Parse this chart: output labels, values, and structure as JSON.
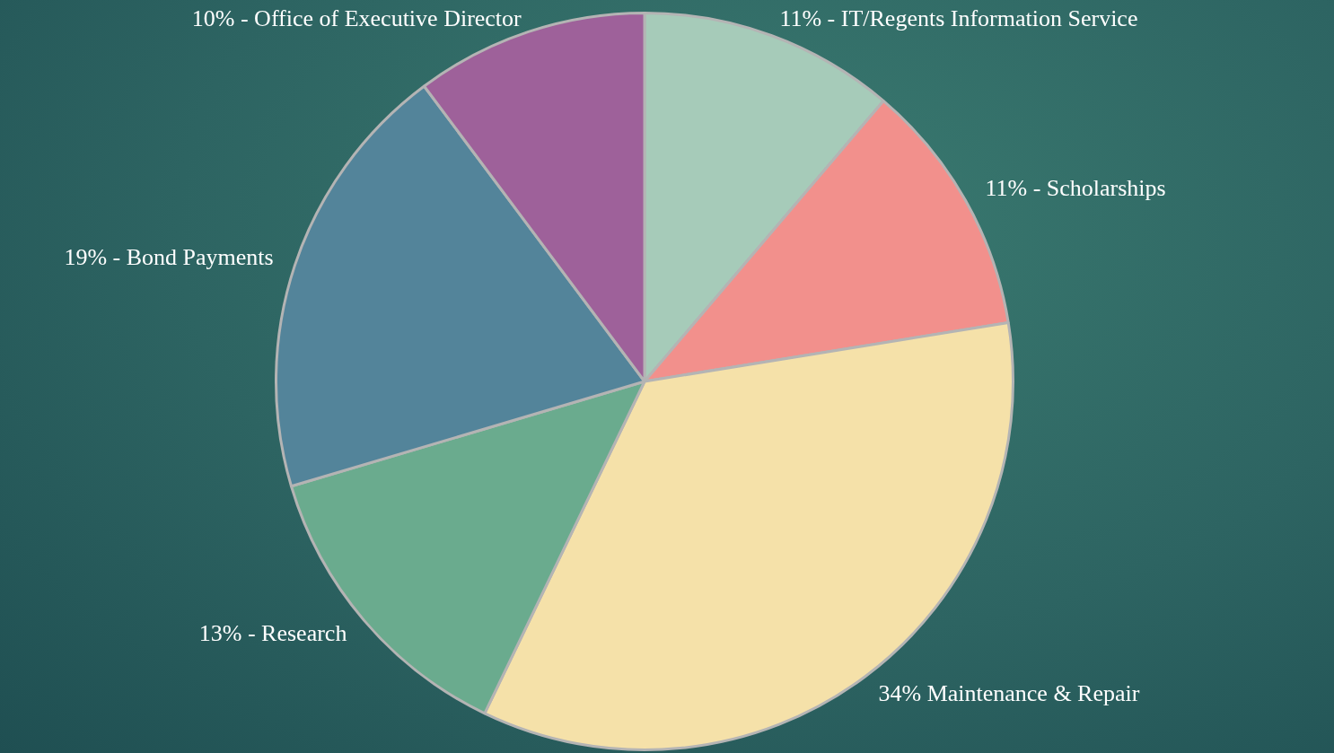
{
  "chart_data": {
    "type": "pie",
    "categories": [
      "IT/Regents Information Service",
      "Scholarships",
      "Maintenance & Repair",
      "Research",
      "Bond Payments",
      "Office of Executive Director"
    ],
    "values": [
      11,
      11,
      34,
      13,
      19,
      10
    ],
    "value_labels": [
      "11% -",
      "11% -",
      "34%",
      "13% -",
      "19% -",
      "10% -"
    ],
    "colors": [
      "#a6cbb9",
      "#f2908c",
      "#f5e1a9",
      "#6aab8e",
      "#53849a",
      "#9e619a"
    ],
    "legend": false
  }
}
